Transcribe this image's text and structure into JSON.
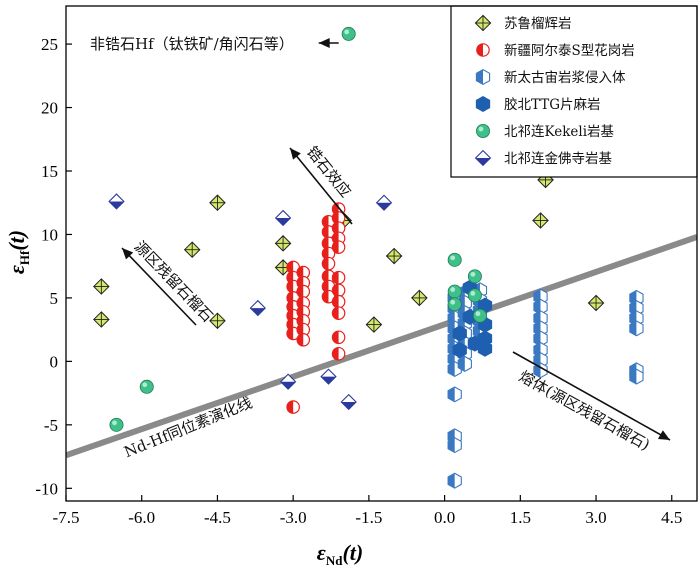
{
  "chart_data": {
    "type": "scatter",
    "xlabel_main": "ε",
    "xlabel_sub": "Nd",
    "xlabel_tail": "(t)",
    "ylabel_main": "ε",
    "ylabel_sub": "Hf",
    "ylabel_tail": "(t)",
    "xlim": [
      -7.5,
      5.0
    ],
    "ylim": [
      -11,
      28
    ],
    "xticks": [
      -7.5,
      -6.0,
      -4.5,
      -3.0,
      -1.5,
      0.0,
      1.5,
      3.0,
      4.5
    ],
    "xtick_labels": [
      "-7.5",
      "-6.0",
      "-4.5",
      "-3.0",
      "-1.5",
      "0.0",
      "1.5",
      "3.0",
      "4.5"
    ],
    "yticks": [
      -10,
      -5,
      0,
      5,
      10,
      15,
      20,
      25
    ],
    "ytick_labels": [
      "-10",
      "-5",
      "0",
      "5",
      "10",
      "15",
      "20",
      "25"
    ],
    "evolution_line": {
      "label": "Nd-Hf同位素演化线",
      "x": [
        -7.5,
        5.0
      ],
      "y": [
        -7.4,
        9.8
      ]
    },
    "annotations": {
      "non_zircon": "非锆石Hf（钛铁矿/角闪石等）",
      "zircon_effect": "锆石效应",
      "residual_garnet": "源区残留石榴石",
      "melt": "熔体(源区残留石榴石)"
    },
    "series": [
      {
        "name": "苏鲁榴辉岩",
        "marker": "diamond-cross",
        "color": "#d6e86b",
        "points": [
          [
            -6.8,
            5.9
          ],
          [
            -6.8,
            3.3
          ],
          [
            -5.0,
            8.8
          ],
          [
            -4.5,
            12.5
          ],
          [
            -4.5,
            3.2
          ],
          [
            -3.2,
            9.3
          ],
          [
            -3.2,
            7.4
          ],
          [
            -2.0,
            11.1
          ],
          [
            -1.4,
            2.9
          ],
          [
            -1.0,
            8.3
          ],
          [
            -0.5,
            5.0
          ],
          [
            2.0,
            14.3
          ],
          [
            1.9,
            11.1
          ],
          [
            3.0,
            4.6
          ]
        ]
      },
      {
        "name": "新疆阿尔泰S型花岗岩",
        "marker": "half-circle",
        "color": "#e8201c",
        "points": [
          [
            -3.0,
            7.4
          ],
          [
            -3.0,
            6.6
          ],
          [
            -3.0,
            5.9
          ],
          [
            -3.0,
            5.0
          ],
          [
            -3.0,
            4.3
          ],
          [
            -3.0,
            3.6
          ],
          [
            -3.0,
            2.9
          ],
          [
            -3.0,
            2.2
          ],
          [
            -2.8,
            7.0
          ],
          [
            -2.8,
            6.2
          ],
          [
            -2.8,
            5.5
          ],
          [
            -2.8,
            4.6
          ],
          [
            -2.8,
            3.9
          ],
          [
            -2.8,
            3.2
          ],
          [
            -2.8,
            2.5
          ],
          [
            -2.8,
            1.7
          ],
          [
            -3.0,
            -3.6
          ],
          [
            -2.3,
            11.0
          ],
          [
            -2.3,
            10.2
          ],
          [
            -2.3,
            9.3
          ],
          [
            -2.3,
            8.5
          ],
          [
            -2.3,
            7.7
          ],
          [
            -2.3,
            6.7
          ],
          [
            -2.3,
            5.9
          ],
          [
            -2.3,
            5.1
          ],
          [
            -2.1,
            12.0
          ],
          [
            -2.1,
            11.3
          ],
          [
            -2.1,
            10.5
          ],
          [
            -2.1,
            9.7
          ],
          [
            -2.1,
            9.0
          ],
          [
            -2.1,
            6.6
          ],
          [
            -2.1,
            5.6
          ],
          [
            -2.1,
            4.7
          ],
          [
            -2.1,
            3.8
          ],
          [
            -2.1,
            1.9
          ],
          [
            -2.1,
            0.6
          ]
        ]
      },
      {
        "name": "新太古宙岩浆侵入体",
        "marker": "half-hexagon",
        "color": "#3a78c2",
        "points": [
          [
            0.2,
            5.0
          ],
          [
            0.2,
            4.2
          ],
          [
            0.2,
            3.4
          ],
          [
            0.2,
            2.6
          ],
          [
            0.2,
            1.8
          ],
          [
            0.2,
            1.0
          ],
          [
            0.2,
            0.2
          ],
          [
            0.2,
            -0.6
          ],
          [
            0.2,
            -2.6
          ],
          [
            0.2,
            -5.9
          ],
          [
            0.2,
            -6.6
          ],
          [
            0.2,
            -9.4
          ],
          [
            0.4,
            5.4
          ],
          [
            0.4,
            4.6
          ],
          [
            0.4,
            3.8
          ],
          [
            0.4,
            3.0
          ],
          [
            0.4,
            2.2
          ],
          [
            0.4,
            1.4
          ],
          [
            0.4,
            0.6
          ],
          [
            0.4,
            -0.2
          ],
          [
            0.7,
            5.6
          ],
          [
            0.7,
            4.8
          ],
          [
            0.7,
            4.0
          ],
          [
            0.7,
            3.2
          ],
          [
            0.7,
            2.4
          ],
          [
            0.7,
            1.6
          ],
          [
            1.9,
            5.1
          ],
          [
            1.9,
            4.3
          ],
          [
            1.9,
            3.4
          ],
          [
            1.9,
            2.6
          ],
          [
            1.9,
            1.8
          ],
          [
            1.9,
            0.9
          ],
          [
            1.9,
            0.1
          ],
          [
            1.9,
            -0.7
          ],
          [
            3.8,
            5.0
          ],
          [
            3.8,
            4.2
          ],
          [
            3.8,
            3.4
          ],
          [
            3.8,
            2.6
          ],
          [
            3.8,
            -0.7
          ],
          [
            3.8,
            -1.2
          ]
        ]
      },
      {
        "name": "胶北TTG片麻岩",
        "marker": "hexagon",
        "color": "#1f5fb0",
        "points": [
          [
            0.3,
            2.2
          ],
          [
            0.3,
            0.9
          ],
          [
            0.5,
            5.8
          ],
          [
            0.5,
            3.5
          ],
          [
            0.6,
            1.4
          ],
          [
            0.8,
            4.4
          ],
          [
            0.8,
            2.9
          ],
          [
            0.8,
            1.8
          ],
          [
            0.8,
            1.0
          ]
        ]
      },
      {
        "name": "北祁连Kekeli岩基",
        "marker": "circle",
        "color": "#3fbf8a",
        "points": [
          [
            -1.9,
            25.8
          ],
          [
            -5.9,
            -2.0
          ],
          [
            -6.5,
            -5.0
          ],
          [
            0.2,
            8.0
          ],
          [
            0.2,
            5.5
          ],
          [
            0.2,
            4.5
          ],
          [
            0.6,
            6.7
          ],
          [
            0.6,
            5.2
          ],
          [
            0.7,
            3.6
          ]
        ]
      },
      {
        "name": "北祁连金佛寺岩基",
        "marker": "half-diamond",
        "color": "#2b3a9e",
        "points": [
          [
            -6.5,
            12.6
          ],
          [
            -3.2,
            11.3
          ],
          [
            -3.7,
            4.2
          ],
          [
            -3.1,
            -1.6
          ],
          [
            -2.3,
            -1.2
          ],
          [
            -1.9,
            -3.2
          ],
          [
            -1.2,
            12.5
          ]
        ]
      }
    ]
  }
}
